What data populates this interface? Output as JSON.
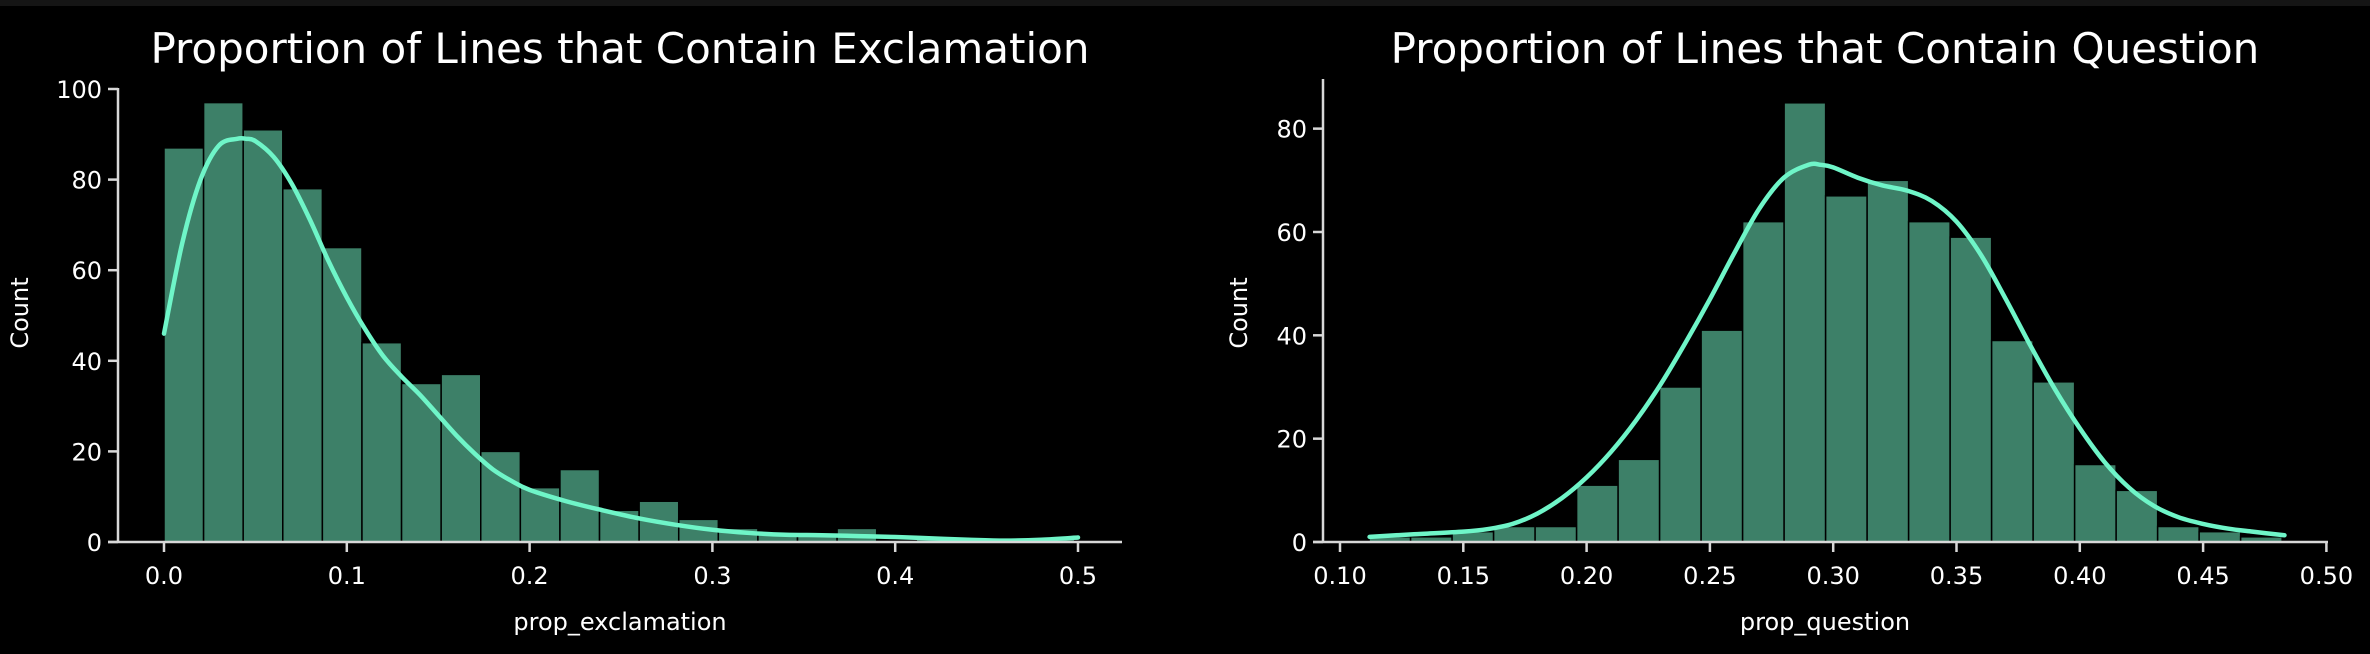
{
  "colors": {
    "background": "#000000",
    "bar_fill": "#3d8068",
    "kde_line": "#6ff5c8",
    "axis": "#d8d8d8",
    "text": "#ffffff"
  },
  "chart_data": [
    {
      "type": "bar",
      "subtype": "histogram_with_kde",
      "title": "Proportion of Lines that Contain Exclamation",
      "xlabel": "prop_exclamation",
      "ylabel": "Count",
      "xlim": [
        -0.0455,
        0.52
      ],
      "ylim": [
        0,
        100.5
      ],
      "xticks": [
        0.0,
        0.1,
        0.2,
        0.3,
        0.4,
        0.5
      ],
      "xtick_labels": [
        "0.0",
        "0.1",
        "0.2",
        "0.3",
        "0.4",
        "0.5"
      ],
      "yticks": [
        0,
        20,
        40,
        60,
        80,
        100
      ],
      "ytick_labels": [
        "0",
        "20",
        "40",
        "60",
        "80",
        "100"
      ],
      "grid": false,
      "legend": null,
      "bin_start": 0.0,
      "bin_width": 0.02166,
      "values": [
        87,
        97,
        91,
        78,
        65,
        44,
        35,
        37,
        20,
        12,
        16,
        7,
        9,
        5,
        3,
        2,
        2,
        3,
        0,
        1,
        0,
        0,
        1
      ],
      "kde": {
        "x": [
          0.0,
          0.01,
          0.02,
          0.03,
          0.04,
          0.045,
          0.05,
          0.06,
          0.07,
          0.08,
          0.09,
          0.1,
          0.11,
          0.12,
          0.13,
          0.14,
          0.15,
          0.16,
          0.17,
          0.18,
          0.19,
          0.2,
          0.22,
          0.24,
          0.26,
          0.28,
          0.3,
          0.32,
          0.34,
          0.36,
          0.38,
          0.4,
          0.42,
          0.44,
          0.46,
          0.48,
          0.5
        ],
        "y": [
          46,
          66,
          80,
          87.5,
          89,
          89,
          88.5,
          85,
          79,
          71,
          62,
          54,
          47,
          41,
          36.5,
          32.5,
          28,
          23.5,
          19.5,
          16,
          13.5,
          11.5,
          9,
          7,
          5.2,
          3.8,
          2.7,
          2,
          1.6,
          1.5,
          1.3,
          1.1,
          0.8,
          0.5,
          0.3,
          0.5,
          1
        ]
      }
    },
    {
      "type": "bar",
      "subtype": "histogram_with_kde",
      "title": "Proportion of Lines that Contain Question",
      "xlabel": "prop_question",
      "ylabel": "Count",
      "xlim": [
        0.0931,
        0.5017
      ],
      "ylim": [
        0,
        89.5
      ],
      "xticks": [
        0.1,
        0.15,
        0.2,
        0.25,
        0.3,
        0.35,
        0.4,
        0.45,
        0.5
      ],
      "xtick_labels": [
        "0.10",
        "0.15",
        "0.20",
        "0.25",
        "0.30",
        "0.35",
        "0.40",
        "0.45",
        "0.50"
      ],
      "yticks": [
        0,
        20,
        40,
        60,
        80
      ],
      "ytick_labels": [
        "0",
        "20",
        "40",
        "60",
        "80"
      ],
      "grid": false,
      "legend": null,
      "bin_start": 0.1118,
      "bin_width": 0.01683,
      "values": [
        1,
        1,
        2,
        3,
        3,
        11,
        16,
        30,
        41,
        62,
        85,
        67,
        70,
        62,
        59,
        39,
        31,
        15,
        10,
        3,
        2,
        1
      ],
      "kde": {
        "x": [
          0.112,
          0.13,
          0.15,
          0.16,
          0.17,
          0.18,
          0.19,
          0.2,
          0.21,
          0.22,
          0.23,
          0.24,
          0.25,
          0.26,
          0.27,
          0.28,
          0.29,
          0.295,
          0.3,
          0.31,
          0.32,
          0.33,
          0.34,
          0.35,
          0.36,
          0.37,
          0.38,
          0.39,
          0.4,
          0.41,
          0.42,
          0.43,
          0.44,
          0.45,
          0.46,
          0.47,
          0.483
        ],
        "y": [
          1,
          1.5,
          2,
          2.5,
          3.5,
          5.5,
          8.5,
          12.5,
          17.5,
          23.5,
          30.5,
          38.5,
          47,
          56,
          64.5,
          70.5,
          73,
          73,
          72.5,
          70.5,
          69,
          68,
          66,
          62,
          55.5,
          47,
          38,
          29.5,
          22,
          15.5,
          10.5,
          7,
          4.8,
          3.5,
          2.6,
          2,
          1.3
        ]
      }
    }
  ],
  "charts": [
    {
      "title": "Proportion of Lines that Contain Exclamation",
      "xlabel": "prop_exclamation",
      "ylabel": "Count",
      "xtick_labels": [
        "0.0",
        "0.1",
        "0.2",
        "0.3",
        "0.4",
        "0.5"
      ],
      "ytick_labels": [
        "0",
        "20",
        "40",
        "60",
        "80",
        "100"
      ]
    },
    {
      "title": "Proportion of Lines that Contain Question",
      "xlabel": "prop_question",
      "ylabel": "Count",
      "xtick_labels": [
        "0.10",
        "0.15",
        "0.20",
        "0.25",
        "0.30",
        "0.35",
        "0.40",
        "0.45",
        "0.50"
      ],
      "ytick_labels": [
        "0",
        "20",
        "40",
        "60",
        "80"
      ]
    }
  ]
}
